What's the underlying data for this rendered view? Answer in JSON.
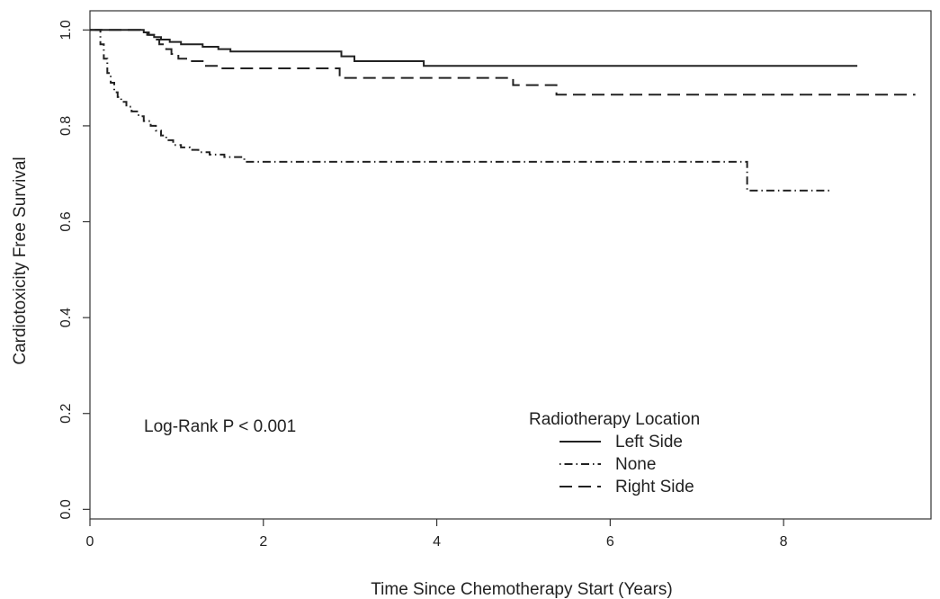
{
  "chart_data": {
    "type": "line",
    "step": true,
    "xlabel": "Time Since Chemotherapy Start (Years)",
    "ylabel": "Cardiotoxicity Free Survival",
    "xlim": [
      0,
      9.7
    ],
    "ylim": [
      -0.02,
      1.04
    ],
    "xticks": [
      0,
      2,
      4,
      6,
      8
    ],
    "yticks": [
      0.0,
      0.2,
      0.4,
      0.6,
      0.8,
      1.0
    ],
    "xtick_labels": [
      "0",
      "2",
      "4",
      "6",
      "8"
    ],
    "ytick_labels": [
      "0.0",
      "0.2",
      "0.4",
      "0.6",
      "0.8",
      "1.0"
    ],
    "grid": false,
    "annotation": "Log-Rank P < 0.001",
    "legend": {
      "title": "Radiotherapy Location",
      "position": "bottom-right"
    },
    "series": [
      {
        "name": "Left Side",
        "line_style": "solid",
        "color": "#222222",
        "x": [
          0,
          0.62,
          0.68,
          0.74,
          0.82,
          0.92,
          1.05,
          1.3,
          1.48,
          1.62,
          2.9,
          3.05,
          3.85,
          8.85
        ],
        "y": [
          1.0,
          0.995,
          0.99,
          0.985,
          0.98,
          0.975,
          0.97,
          0.965,
          0.96,
          0.955,
          0.945,
          0.935,
          0.925,
          0.925
        ]
      },
      {
        "name": "None",
        "line_style": "dotdash",
        "color": "#222222",
        "x": [
          0,
          0.12,
          0.16,
          0.2,
          0.24,
          0.28,
          0.32,
          0.36,
          0.42,
          0.48,
          0.56,
          0.62,
          0.7,
          0.76,
          0.82,
          0.88,
          0.96,
          1.05,
          1.15,
          1.25,
          1.38,
          1.55,
          1.78,
          7.58,
          8.55
        ],
        "y": [
          1.0,
          0.97,
          0.94,
          0.91,
          0.89,
          0.87,
          0.86,
          0.85,
          0.84,
          0.83,
          0.82,
          0.81,
          0.8,
          0.79,
          0.78,
          0.77,
          0.76,
          0.755,
          0.75,
          0.745,
          0.74,
          0.735,
          0.725,
          0.665,
          0.665
        ]
      },
      {
        "name": "Right Side",
        "line_style": "dashed",
        "color": "#222222",
        "x": [
          0,
          0.58,
          0.66,
          0.74,
          0.8,
          0.88,
          0.94,
          1.02,
          1.12,
          1.32,
          1.48,
          2.88,
          4.88,
          5.38,
          9.52
        ],
        "y": [
          1.0,
          0.995,
          0.99,
          0.98,
          0.97,
          0.96,
          0.95,
          0.94,
          0.935,
          0.925,
          0.92,
          0.9,
          0.885,
          0.865,
          0.865
        ]
      }
    ]
  }
}
